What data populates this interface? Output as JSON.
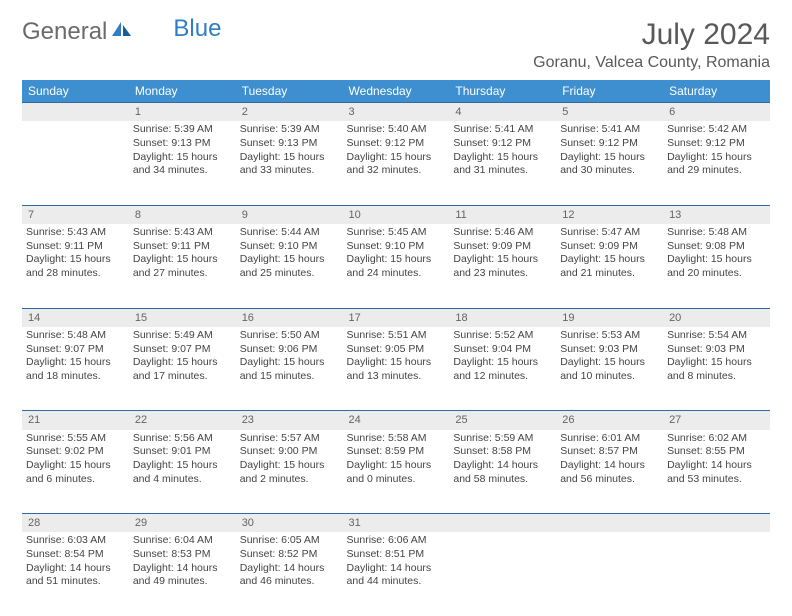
{
  "brand": {
    "general": "General",
    "blue": "Blue"
  },
  "title": "July 2024",
  "location": "Goranu, Valcea County, Romania",
  "weekdays": [
    "Sunday",
    "Monday",
    "Tuesday",
    "Wednesday",
    "Thursday",
    "Friday",
    "Saturday"
  ],
  "colors": {
    "header_bg": "#3d8fcf",
    "header_text": "#ffffff",
    "daynum_bg": "#ececec",
    "row_border": "#2f6aa5",
    "text": "#444444",
    "title_text": "#595959"
  },
  "weeks": [
    {
      "nums": [
        "",
        "1",
        "2",
        "3",
        "4",
        "5",
        "6"
      ],
      "cells": [
        null,
        {
          "sunrise": "Sunrise: 5:39 AM",
          "sunset": "Sunset: 9:13 PM",
          "day1": "Daylight: 15 hours",
          "day2": "and 34 minutes."
        },
        {
          "sunrise": "Sunrise: 5:39 AM",
          "sunset": "Sunset: 9:13 PM",
          "day1": "Daylight: 15 hours",
          "day2": "and 33 minutes."
        },
        {
          "sunrise": "Sunrise: 5:40 AM",
          "sunset": "Sunset: 9:12 PM",
          "day1": "Daylight: 15 hours",
          "day2": "and 32 minutes."
        },
        {
          "sunrise": "Sunrise: 5:41 AM",
          "sunset": "Sunset: 9:12 PM",
          "day1": "Daylight: 15 hours",
          "day2": "and 31 minutes."
        },
        {
          "sunrise": "Sunrise: 5:41 AM",
          "sunset": "Sunset: 9:12 PM",
          "day1": "Daylight: 15 hours",
          "day2": "and 30 minutes."
        },
        {
          "sunrise": "Sunrise: 5:42 AM",
          "sunset": "Sunset: 9:12 PM",
          "day1": "Daylight: 15 hours",
          "day2": "and 29 minutes."
        }
      ]
    },
    {
      "nums": [
        "7",
        "8",
        "9",
        "10",
        "11",
        "12",
        "13"
      ],
      "cells": [
        {
          "sunrise": "Sunrise: 5:43 AM",
          "sunset": "Sunset: 9:11 PM",
          "day1": "Daylight: 15 hours",
          "day2": "and 28 minutes."
        },
        {
          "sunrise": "Sunrise: 5:43 AM",
          "sunset": "Sunset: 9:11 PM",
          "day1": "Daylight: 15 hours",
          "day2": "and 27 minutes."
        },
        {
          "sunrise": "Sunrise: 5:44 AM",
          "sunset": "Sunset: 9:10 PM",
          "day1": "Daylight: 15 hours",
          "day2": "and 25 minutes."
        },
        {
          "sunrise": "Sunrise: 5:45 AM",
          "sunset": "Sunset: 9:10 PM",
          "day1": "Daylight: 15 hours",
          "day2": "and 24 minutes."
        },
        {
          "sunrise": "Sunrise: 5:46 AM",
          "sunset": "Sunset: 9:09 PM",
          "day1": "Daylight: 15 hours",
          "day2": "and 23 minutes."
        },
        {
          "sunrise": "Sunrise: 5:47 AM",
          "sunset": "Sunset: 9:09 PM",
          "day1": "Daylight: 15 hours",
          "day2": "and 21 minutes."
        },
        {
          "sunrise": "Sunrise: 5:48 AM",
          "sunset": "Sunset: 9:08 PM",
          "day1": "Daylight: 15 hours",
          "day2": "and 20 minutes."
        }
      ]
    },
    {
      "nums": [
        "14",
        "15",
        "16",
        "17",
        "18",
        "19",
        "20"
      ],
      "cells": [
        {
          "sunrise": "Sunrise: 5:48 AM",
          "sunset": "Sunset: 9:07 PM",
          "day1": "Daylight: 15 hours",
          "day2": "and 18 minutes."
        },
        {
          "sunrise": "Sunrise: 5:49 AM",
          "sunset": "Sunset: 9:07 PM",
          "day1": "Daylight: 15 hours",
          "day2": "and 17 minutes."
        },
        {
          "sunrise": "Sunrise: 5:50 AM",
          "sunset": "Sunset: 9:06 PM",
          "day1": "Daylight: 15 hours",
          "day2": "and 15 minutes."
        },
        {
          "sunrise": "Sunrise: 5:51 AM",
          "sunset": "Sunset: 9:05 PM",
          "day1": "Daylight: 15 hours",
          "day2": "and 13 minutes."
        },
        {
          "sunrise": "Sunrise: 5:52 AM",
          "sunset": "Sunset: 9:04 PM",
          "day1": "Daylight: 15 hours",
          "day2": "and 12 minutes."
        },
        {
          "sunrise": "Sunrise: 5:53 AM",
          "sunset": "Sunset: 9:03 PM",
          "day1": "Daylight: 15 hours",
          "day2": "and 10 minutes."
        },
        {
          "sunrise": "Sunrise: 5:54 AM",
          "sunset": "Sunset: 9:03 PM",
          "day1": "Daylight: 15 hours",
          "day2": "and 8 minutes."
        }
      ]
    },
    {
      "nums": [
        "21",
        "22",
        "23",
        "24",
        "25",
        "26",
        "27"
      ],
      "cells": [
        {
          "sunrise": "Sunrise: 5:55 AM",
          "sunset": "Sunset: 9:02 PM",
          "day1": "Daylight: 15 hours",
          "day2": "and 6 minutes."
        },
        {
          "sunrise": "Sunrise: 5:56 AM",
          "sunset": "Sunset: 9:01 PM",
          "day1": "Daylight: 15 hours",
          "day2": "and 4 minutes."
        },
        {
          "sunrise": "Sunrise: 5:57 AM",
          "sunset": "Sunset: 9:00 PM",
          "day1": "Daylight: 15 hours",
          "day2": "and 2 minutes."
        },
        {
          "sunrise": "Sunrise: 5:58 AM",
          "sunset": "Sunset: 8:59 PM",
          "day1": "Daylight: 15 hours",
          "day2": "and 0 minutes."
        },
        {
          "sunrise": "Sunrise: 5:59 AM",
          "sunset": "Sunset: 8:58 PM",
          "day1": "Daylight: 14 hours",
          "day2": "and 58 minutes."
        },
        {
          "sunrise": "Sunrise: 6:01 AM",
          "sunset": "Sunset: 8:57 PM",
          "day1": "Daylight: 14 hours",
          "day2": "and 56 minutes."
        },
        {
          "sunrise": "Sunrise: 6:02 AM",
          "sunset": "Sunset: 8:55 PM",
          "day1": "Daylight: 14 hours",
          "day2": "and 53 minutes."
        }
      ]
    },
    {
      "nums": [
        "28",
        "29",
        "30",
        "31",
        "",
        "",
        ""
      ],
      "cells": [
        {
          "sunrise": "Sunrise: 6:03 AM",
          "sunset": "Sunset: 8:54 PM",
          "day1": "Daylight: 14 hours",
          "day2": "and 51 minutes."
        },
        {
          "sunrise": "Sunrise: 6:04 AM",
          "sunset": "Sunset: 8:53 PM",
          "day1": "Daylight: 14 hours",
          "day2": "and 49 minutes."
        },
        {
          "sunrise": "Sunrise: 6:05 AM",
          "sunset": "Sunset: 8:52 PM",
          "day1": "Daylight: 14 hours",
          "day2": "and 46 minutes."
        },
        {
          "sunrise": "Sunrise: 6:06 AM",
          "sunset": "Sunset: 8:51 PM",
          "day1": "Daylight: 14 hours",
          "day2": "and 44 minutes."
        },
        null,
        null,
        null
      ]
    }
  ]
}
